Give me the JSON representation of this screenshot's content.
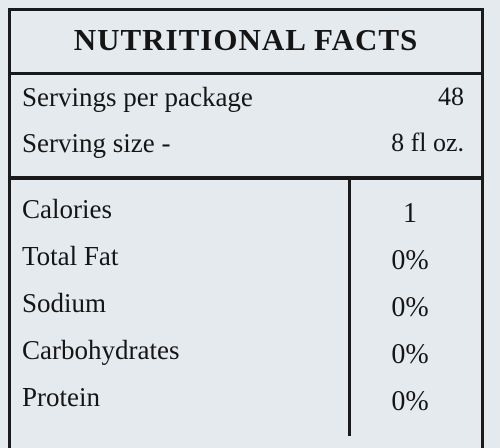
{
  "header": {
    "title": "NUTRITIONAL FACTS"
  },
  "servings": {
    "rows": [
      [
        "Servings per package",
        "48"
      ],
      [
        "Serving size -",
        "8 fl oz."
      ]
    ]
  },
  "nutrients": {
    "rows": [
      [
        "Calories",
        "1"
      ],
      [
        "Total Fat",
        "0%"
      ],
      [
        "Sodium",
        "0%"
      ],
      [
        "Carbohydrates",
        "0%"
      ],
      [
        "Protein",
        "0%"
      ]
    ]
  }
}
